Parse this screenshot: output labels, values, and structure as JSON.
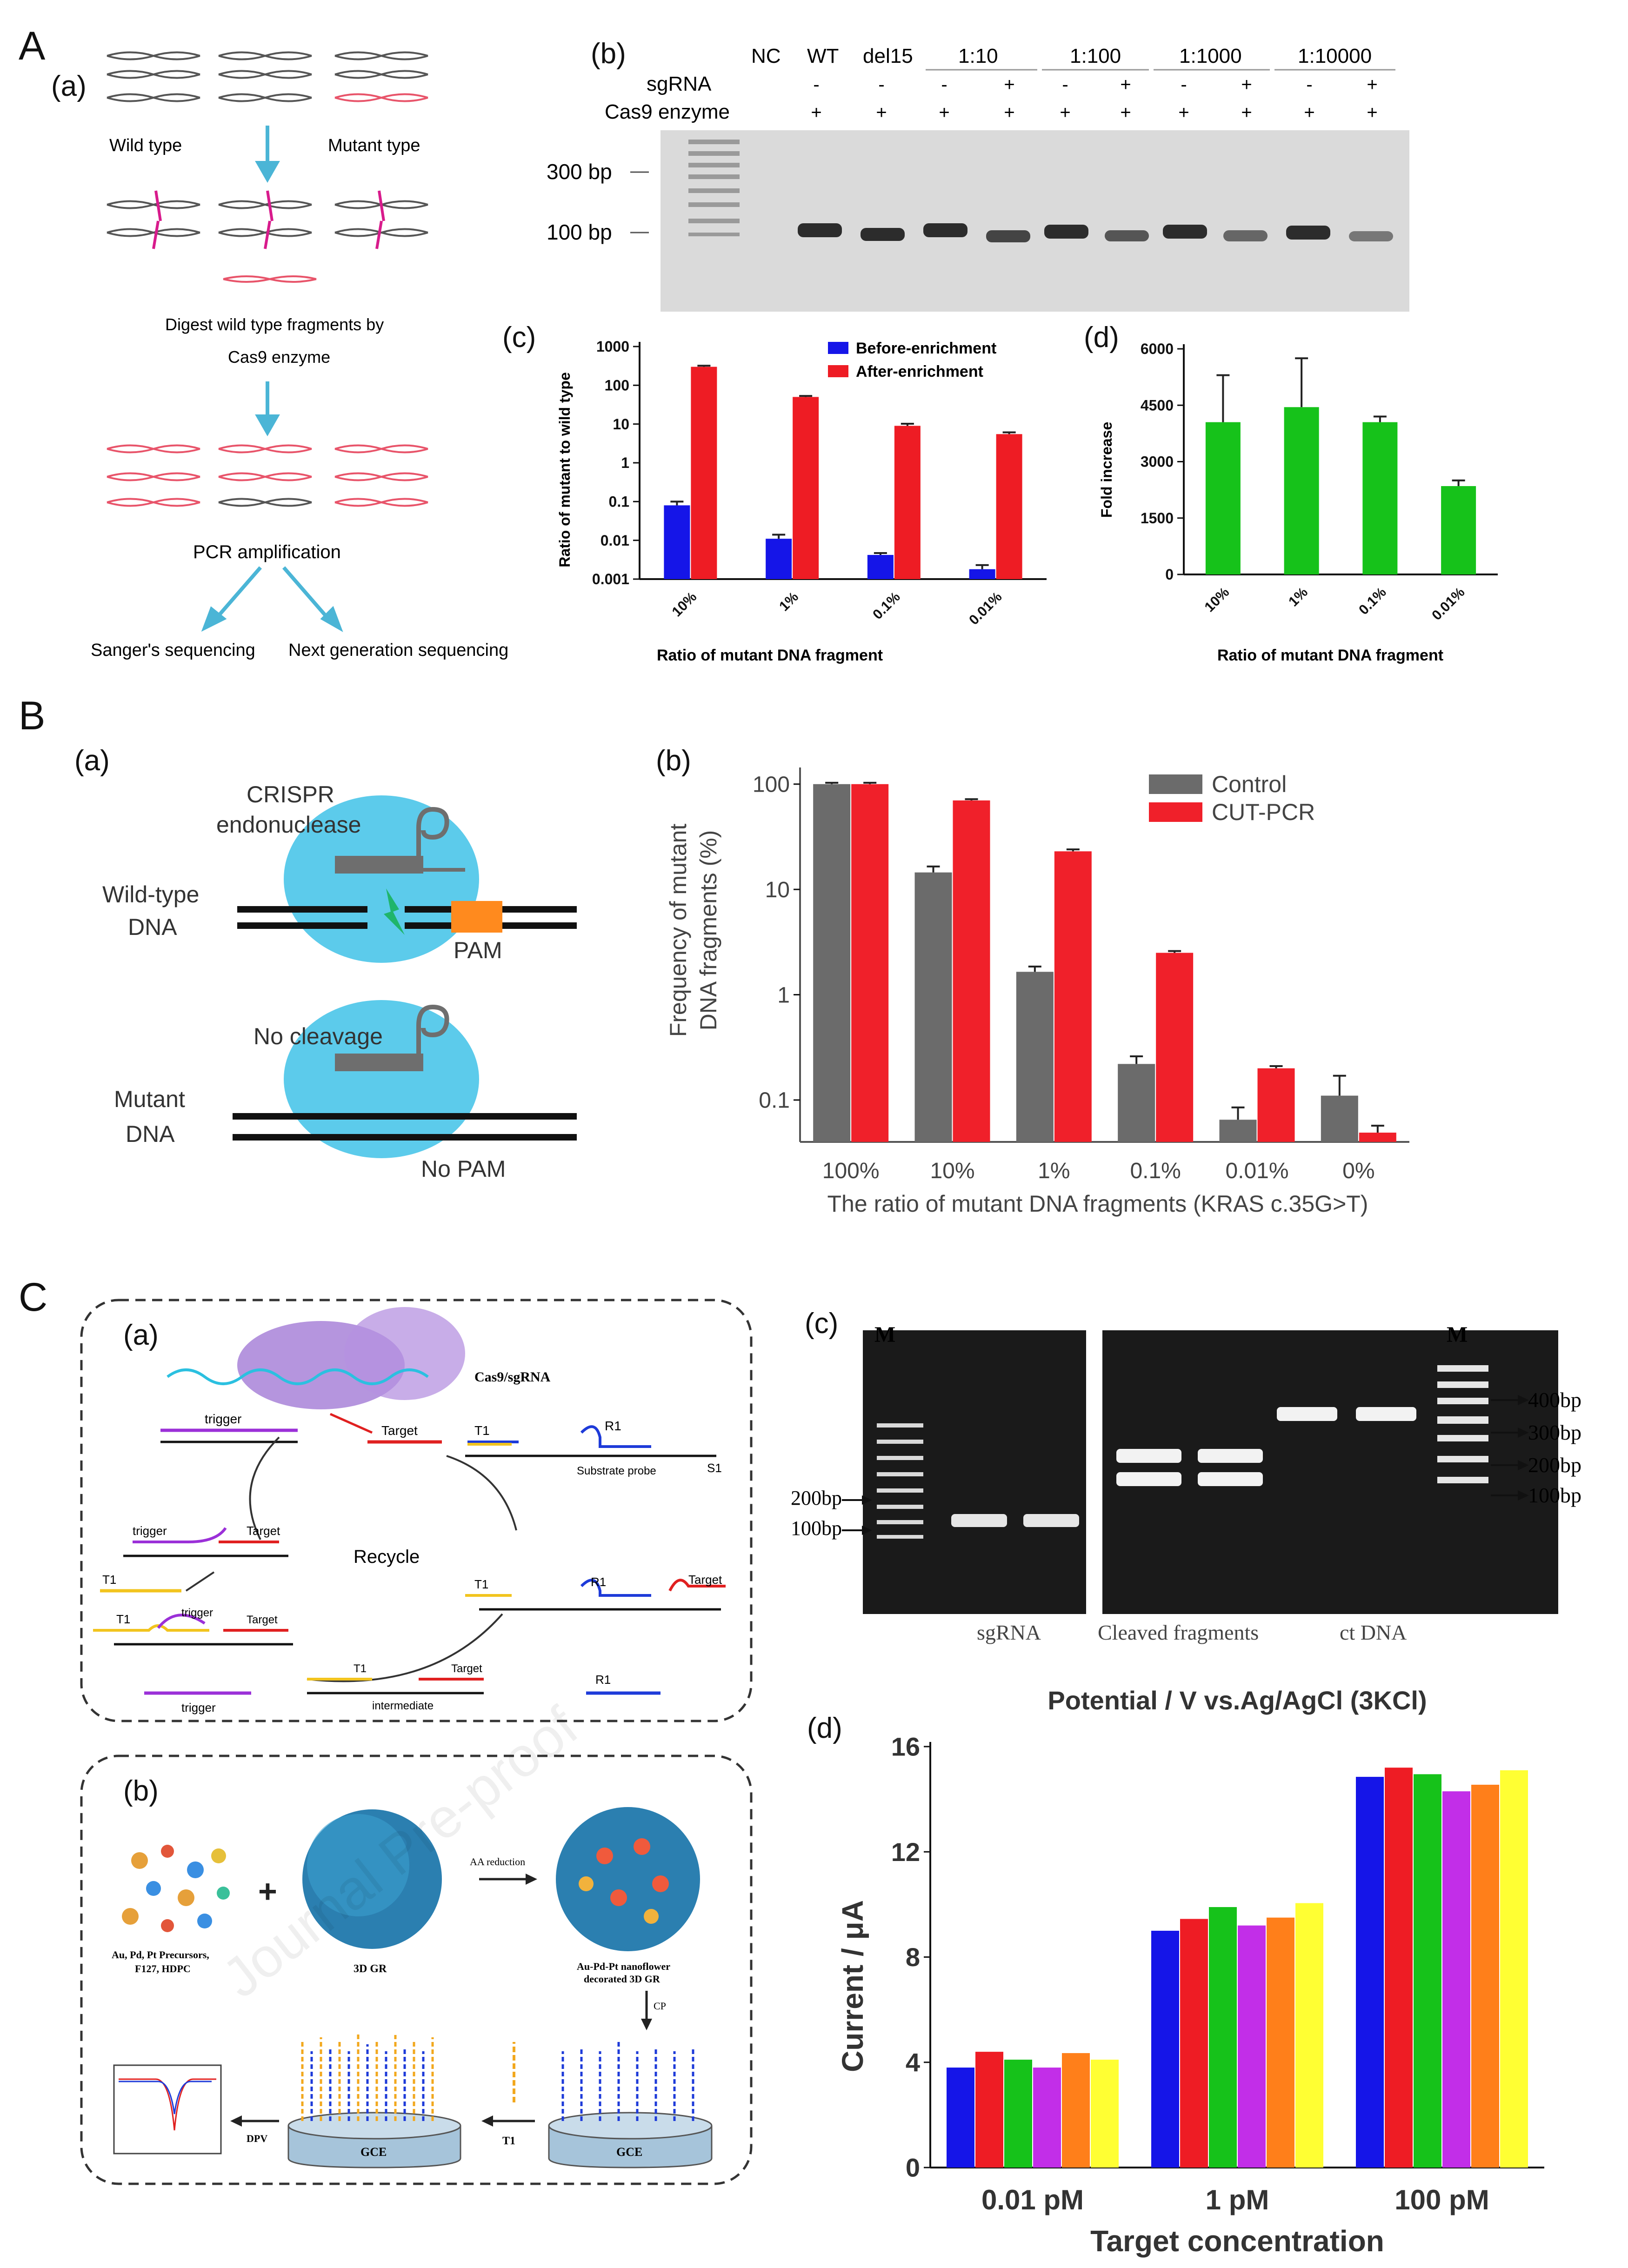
{
  "panels": {
    "A": "A",
    "B": "B",
    "C": "C",
    "a": "(a)",
    "b": "(b)",
    "c": "(c)",
    "d": "(d)"
  },
  "A_a": {
    "wild_type": "Wild type",
    "mutant_type": "Mutant type",
    "digest_line1": "Digest wild type fragments by",
    "digest_line2": "Cas9 enzyme",
    "pcr": "PCR amplification",
    "sanger": "Sanger's sequencing",
    "ngs": "Next generation sequencing"
  },
  "A_b": {
    "sgRNA_label": "sgRNA",
    "cas9_label": "Cas9 enzyme",
    "lanes": [
      "NC",
      "WT",
      "del15",
      "1:10",
      "1:100",
      "1:1000",
      "1:10000"
    ],
    "sgRNA_row": [
      "-",
      "-",
      "-",
      "+",
      "-",
      "+",
      "-",
      "+",
      "-",
      "+"
    ],
    "cas9_row": [
      "+",
      "+",
      "+",
      "+",
      "+",
      "+",
      "+",
      "+",
      "+",
      "+"
    ],
    "marker_300": "300 bp",
    "marker_100": "100 bp"
  },
  "colors": {
    "blue": "#1515e8",
    "red": "#ee1c24",
    "green": "#16c21a",
    "gray": "#6b6b6b",
    "cut_red": "#f0202a",
    "purple": "#c22ee8",
    "orange": "#ff7f1a",
    "yellow": "#ffff33",
    "dna_blue": "#35b3d9",
    "pam_orange": "#ff8a1e",
    "cell_cyan": "#3fc2e8"
  },
  "chart_data": [
    {
      "id": "A_c",
      "type": "bar",
      "scale": "log",
      "categories": [
        "10%",
        "1%",
        "0.1%",
        "0.01%"
      ],
      "series": [
        {
          "name": "Before-enrichment",
          "values": [
            0.08,
            0.011,
            0.0042,
            0.0018
          ],
          "errors": [
            0.02,
            0.003,
            0.0005,
            0.0005
          ]
        },
        {
          "name": "After-enrichment",
          "values": [
            300,
            50,
            9,
            5.5
          ],
          "errors": [
            20,
            3,
            1.2,
            0.6
          ]
        }
      ],
      "yticks": [
        "1000",
        "100",
        "10",
        "1",
        "0.1",
        "0.01",
        "0.001"
      ],
      "ylim": [
        0.001,
        1000
      ],
      "ylabel": "Ratio of mutant to wild type",
      "xlabel": "Ratio of mutant DNA fragment"
    },
    {
      "id": "A_d",
      "type": "bar",
      "categories": [
        "10%",
        "1%",
        "0.1%",
        "0.01%"
      ],
      "series": [
        {
          "name": "Fold increase",
          "values": [
            4050,
            4450,
            4050,
            2350
          ],
          "errors": [
            1250,
            1300,
            150,
            150
          ]
        }
      ],
      "yticks": [
        "6000",
        "4500",
        "3000",
        "1500",
        "0"
      ],
      "ylim": [
        0,
        6000
      ],
      "ylabel": "Fold  increase",
      "xlabel": "Ratio of mutant DNA fragment"
    },
    {
      "id": "B_b",
      "type": "bar",
      "scale": "log",
      "categories": [
        "100%",
        "10%",
        "1%",
        "0.1%",
        "0.01%",
        "0%"
      ],
      "series": [
        {
          "name": "Control",
          "values": [
            100,
            14.5,
            1.65,
            0.22,
            0.065,
            0.11
          ],
          "errors": [
            3,
            2,
            0.2,
            0.04,
            0.02,
            0.06
          ]
        },
        {
          "name": "CUT-PCR",
          "values": [
            100,
            70,
            23,
            2.5,
            0.2,
            0.049
          ],
          "errors": [
            3,
            2,
            1,
            0.1,
            0.01,
            0.008
          ]
        }
      ],
      "yticks": [
        "100",
        "10",
        "1",
        "0.1"
      ],
      "ylim": [
        0.04,
        130
      ],
      "ylabel_line1": "Frequency of mutant",
      "ylabel_line2": "DNA fragments (%)",
      "xlabel": "The ratio of mutant DNA fragments (KRAS c.35G>T)"
    },
    {
      "id": "C_d",
      "type": "bar",
      "title": "Potential / V vs.Ag/AgCl (3KCl)",
      "categories": [
        "0.01 pM",
        "1 pM",
        "100 pM"
      ],
      "series_values": [
        [
          3.8,
          4.4,
          4.1,
          3.8,
          4.35,
          4.1
        ],
        [
          9.0,
          9.45,
          9.9,
          9.2,
          9.5,
          10.05
        ],
        [
          14.85,
          15.2,
          14.95,
          14.3,
          14.55,
          15.1
        ]
      ],
      "yticks": [
        "16",
        "12",
        "8",
        "4",
        "0"
      ],
      "ylim": [
        0,
        16
      ],
      "ylabel": "Current / μA",
      "xlabel": "Target concentration"
    }
  ],
  "B_a": {
    "crispr_line1": "CRISPR",
    "crispr_line2": "endonuclease",
    "wt_line1": "Wild-type",
    "wt_line2": "DNA",
    "pam": "PAM",
    "no_cleavage": "No cleavage",
    "mut_line1": "Mutant",
    "mut_line2": "DNA",
    "no_pam": "No PAM"
  },
  "C_a": {
    "cas9": "Cas9/sgRNA",
    "trigger": "trigger",
    "target": "Target",
    "t1": "T1",
    "r1": "R1",
    "substrate": "Substrate probe",
    "s1": "S1",
    "recycle": "Recycle",
    "intermediate": "intermediate"
  },
  "C_b": {
    "precursors_line1": "Au, Pd, Pt Precursors,",
    "precursors_line2": "F127, HDPC",
    "gr": "3D GR",
    "aa": "AA reduction",
    "nano_line1": "Au-Pd-Pt nanoflower",
    "nano_line2": "decorated 3D GR",
    "cp": "CP",
    "gce": "GCE",
    "t1": "T1",
    "dpv": "DPV",
    "plus": "+",
    "watermark": "Journal Pre-proof"
  },
  "C_c": {
    "m": "M",
    "m_right": "M",
    "bp200": "200bp",
    "bp100": "100bp",
    "r400": "400bp",
    "r300": "300bp",
    "r200": "200bp",
    "r100": "100bp",
    "sgRNA": "sgRNA",
    "cleaved": "Cleaved fragments",
    "ctdna": "ct DNA"
  }
}
